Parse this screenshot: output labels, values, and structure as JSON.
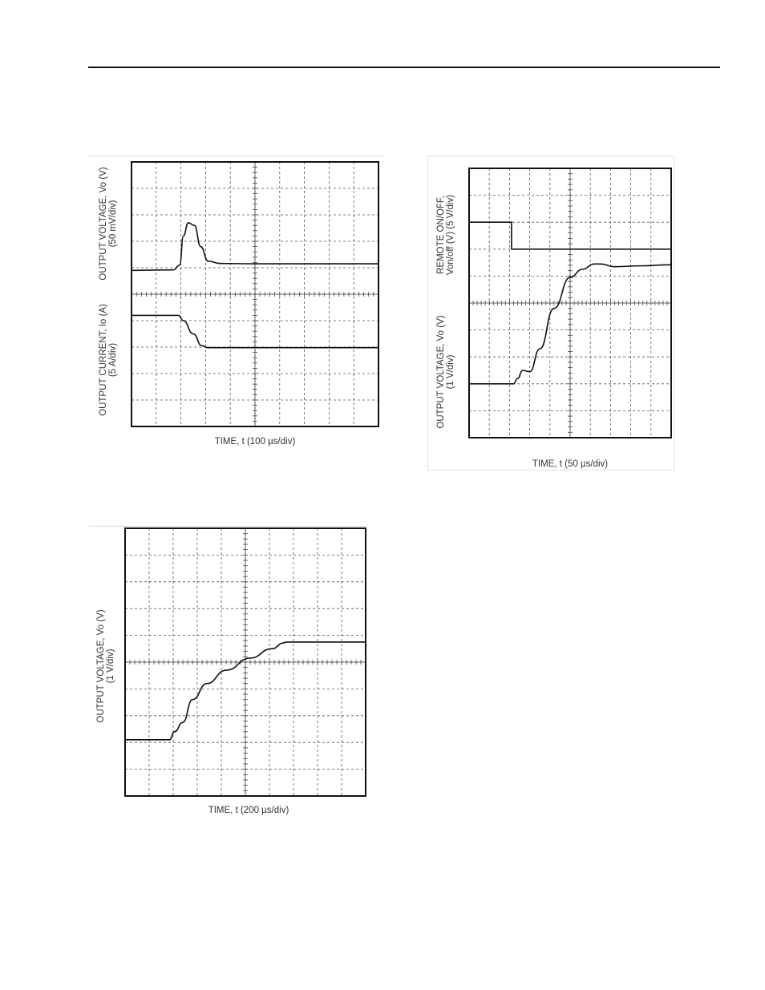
{
  "page": {
    "header_rule": true
  },
  "chart_data": [
    {
      "id": "load-step",
      "type": "line",
      "title": "",
      "xlabel": "TIME, t (100 µs/div)",
      "ylabel_top": {
        "line1": "OUTPUT VOLTAGE, Vo (V)",
        "line2": "(50 mV/div)"
      },
      "ylabel_bottom": {
        "line1": "OUTPUT CURRENT, Io (A)",
        "line2": "(5 A/div)"
      },
      "divisions": {
        "x": 10,
        "y": 10
      },
      "xlim": [
        0,
        10
      ],
      "ylim": [
        0,
        10
      ],
      "grid": true,
      "x_units": "div",
      "y_units": "div",
      "series": [
        {
          "points": [
            [
              0,
              5.9
            ],
            [
              1.7,
              5.92
            ],
            [
              1.95,
              6.1
            ],
            [
              2.1,
              7.2
            ],
            [
              2.3,
              7.7
            ],
            [
              2.55,
              7.6
            ],
            [
              2.8,
              6.8
            ],
            [
              3.1,
              6.25
            ],
            [
              3.6,
              6.16
            ],
            [
              5,
              6.15
            ],
            [
              7,
              6.15
            ],
            [
              10,
              6.15
            ]
          ]
        },
        {
          "points": [
            [
              0,
              4.2
            ],
            [
              1.9,
              4.2
            ],
            [
              2.1,
              4.0
            ],
            [
              2.5,
              3.5
            ],
            [
              2.85,
              3.05
            ],
            [
              3.1,
              2.98
            ],
            [
              5,
              2.98
            ],
            [
              10,
              2.98
            ]
          ]
        }
      ]
    },
    {
      "id": "remote-on",
      "type": "line",
      "title": "",
      "xlabel": "TIME, t (50 µs/div)",
      "ylabel_top": {
        "line1": "REMOTE ON/OFF,",
        "line2": "Von/off (V) (5 V/div)"
      },
      "ylabel_bottom": {
        "line1": "OUTPUT VOLTAGE, Vo (V)",
        "line2": "(1 V/div)"
      },
      "divisions": {
        "x": 10,
        "y": 10
      },
      "xlim": [
        0,
        10
      ],
      "ylim": [
        0,
        10
      ],
      "grid": true,
      "x_units": "div",
      "y_units": "div",
      "series": [
        {
          "points": [
            [
              0,
              8.0
            ],
            [
              2.1,
              8.0
            ],
            [
              2.1,
              7.0
            ],
            [
              10,
              7.0
            ]
          ]
        },
        {
          "points": [
            [
              0,
              2.0
            ],
            [
              2.2,
              2.0
            ],
            [
              2.4,
              2.2
            ],
            [
              2.65,
              2.5
            ],
            [
              3.0,
              2.45
            ],
            [
              3.5,
              3.3
            ],
            [
              4.2,
              4.8
            ],
            [
              5.0,
              5.95
            ],
            [
              5.6,
              6.25
            ],
            [
              6.2,
              6.45
            ],
            [
              6.5,
              6.45
            ],
            [
              7.2,
              6.35
            ],
            [
              8.5,
              6.38
            ],
            [
              10,
              6.42
            ]
          ]
        }
      ]
    },
    {
      "id": "startup",
      "type": "line",
      "title": "",
      "xlabel": "TIME, t (200 µs/div)",
      "ylabel_top": {
        "line1": "OUTPUT VOLTAGE, Vo (V)",
        "line2": "(1 V/div)"
      },
      "divisions": {
        "x": 10,
        "y": 10
      },
      "xlim": [
        0,
        10
      ],
      "ylim": [
        0,
        10
      ],
      "grid": true,
      "x_units": "div",
      "y_units": "div",
      "series": [
        {
          "points": [
            [
              0,
              2.1
            ],
            [
              1.85,
              2.1
            ],
            [
              2.05,
              2.4
            ],
            [
              2.4,
              2.75
            ],
            [
              2.8,
              3.6
            ],
            [
              3.4,
              4.2
            ],
            [
              4.2,
              4.7
            ],
            [
              5.2,
              5.15
            ],
            [
              6.1,
              5.5
            ],
            [
              6.6,
              5.72
            ],
            [
              6.7,
              5.75
            ],
            [
              10,
              5.75
            ]
          ]
        }
      ]
    }
  ]
}
